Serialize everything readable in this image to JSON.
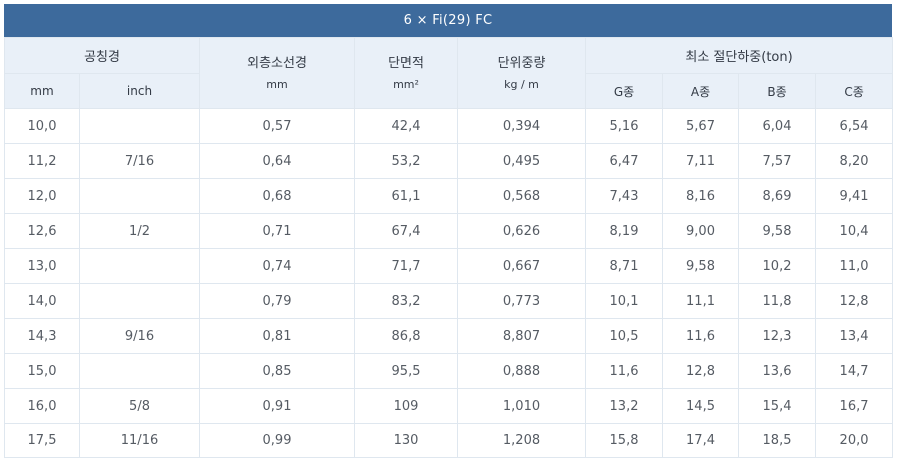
{
  "title": "6 × Fi(29) FC",
  "headers": {
    "nominal_diameter": "공칭경",
    "mm": "mm",
    "inch": "inch",
    "outer_wire_diameter": "외층소선경",
    "outer_wire_unit": "mm",
    "cross_section": "단면적",
    "cross_section_unit": "mm²",
    "unit_weight": "단위중량",
    "unit_weight_unit": "kg / m",
    "min_breaking_load": "최소 절단하중(ton)",
    "g_grade": "G종",
    "a_grade": "A종",
    "b_grade": "B종",
    "c_grade": "C종"
  },
  "rows": [
    {
      "mm": "10,0",
      "inch": "",
      "outer": "0,57",
      "area": "42,4",
      "weight": "0,394",
      "g": "5,16",
      "a": "5,67",
      "b": "6,04",
      "c": "6,54"
    },
    {
      "mm": "11,2",
      "inch": "7/16",
      "outer": "0,64",
      "area": "53,2",
      "weight": "0,495",
      "g": "6,47",
      "a": "7,11",
      "b": "7,57",
      "c": "8,20"
    },
    {
      "mm": "12,0",
      "inch": "",
      "outer": "0,68",
      "area": "61,1",
      "weight": "0,568",
      "g": "7,43",
      "a": "8,16",
      "b": "8,69",
      "c": "9,41"
    },
    {
      "mm": "12,6",
      "inch": "1/2",
      "outer": "0,71",
      "area": "67,4",
      "weight": "0,626",
      "g": "8,19",
      "a": "9,00",
      "b": "9,58",
      "c": "10,4"
    },
    {
      "mm": "13,0",
      "inch": "",
      "outer": "0,74",
      "area": "71,7",
      "weight": "0,667",
      "g": "8,71",
      "a": "9,58",
      "b": "10,2",
      "c": "11,0"
    },
    {
      "mm": "14,0",
      "inch": "",
      "outer": "0,79",
      "area": "83,2",
      "weight": "0,773",
      "g": "10,1",
      "a": "11,1",
      "b": "11,8",
      "c": "12,8"
    },
    {
      "mm": "14,3",
      "inch": "9/16",
      "outer": "0,81",
      "area": "86,8",
      "weight": "8,807",
      "g": "10,5",
      "a": "11,6",
      "b": "12,3",
      "c": "13,4"
    },
    {
      "mm": "15,0",
      "inch": "",
      "outer": "0,85",
      "area": "95,5",
      "weight": "0,888",
      "g": "11,6",
      "a": "12,8",
      "b": "13,6",
      "c": "14,7"
    },
    {
      "mm": "16,0",
      "inch": "5/8",
      "outer": "0,91",
      "area": "109",
      "weight": "1,010",
      "g": "13,2",
      "a": "14,5",
      "b": "15,4",
      "c": "16,7"
    },
    {
      "mm": "17,5",
      "inch": "11/16",
      "outer": "0,99",
      "area": "130",
      "weight": "1,208",
      "g": "15,8",
      "a": "17,4",
      "b": "18,5",
      "c": "20,0"
    }
  ]
}
